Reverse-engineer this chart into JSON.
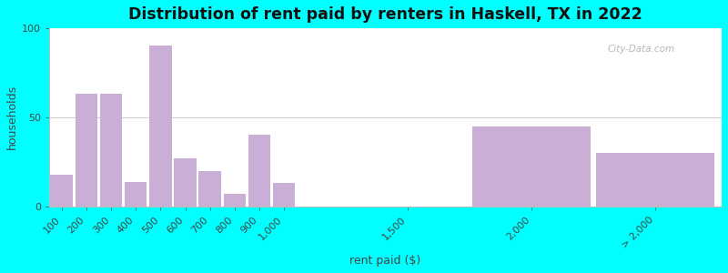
{
  "title": "Distribution of rent paid by renters in Haskell, TX in 2022",
  "xlabel": "rent paid ($)",
  "ylabel": "households",
  "bar_color": "#c9aed6",
  "bar_edgecolor": "#c9aed6",
  "background_outer": "#00ffff",
  "ylim": [
    0,
    100
  ],
  "yticks": [
    0,
    50,
    100
  ],
  "categories": [
    "100",
    "200",
    "300",
    "400",
    "500",
    "600",
    "700",
    "800",
    "900",
    "1,000",
    "1,500",
    "2,000",
    "> 2,000"
  ],
  "values": [
    18,
    63,
    63,
    14,
    90,
    27,
    20,
    7,
    40,
    13,
    0,
    45,
    30
  ],
  "positions": [
    100,
    200,
    300,
    400,
    500,
    600,
    700,
    800,
    900,
    1000,
    1500,
    2000,
    2500
  ],
  "bar_widths": [
    90,
    90,
    90,
    90,
    90,
    90,
    90,
    90,
    90,
    90,
    90,
    480,
    480
  ],
  "xlim": [
    50,
    2770
  ],
  "watermark": "City-Data.com"
}
